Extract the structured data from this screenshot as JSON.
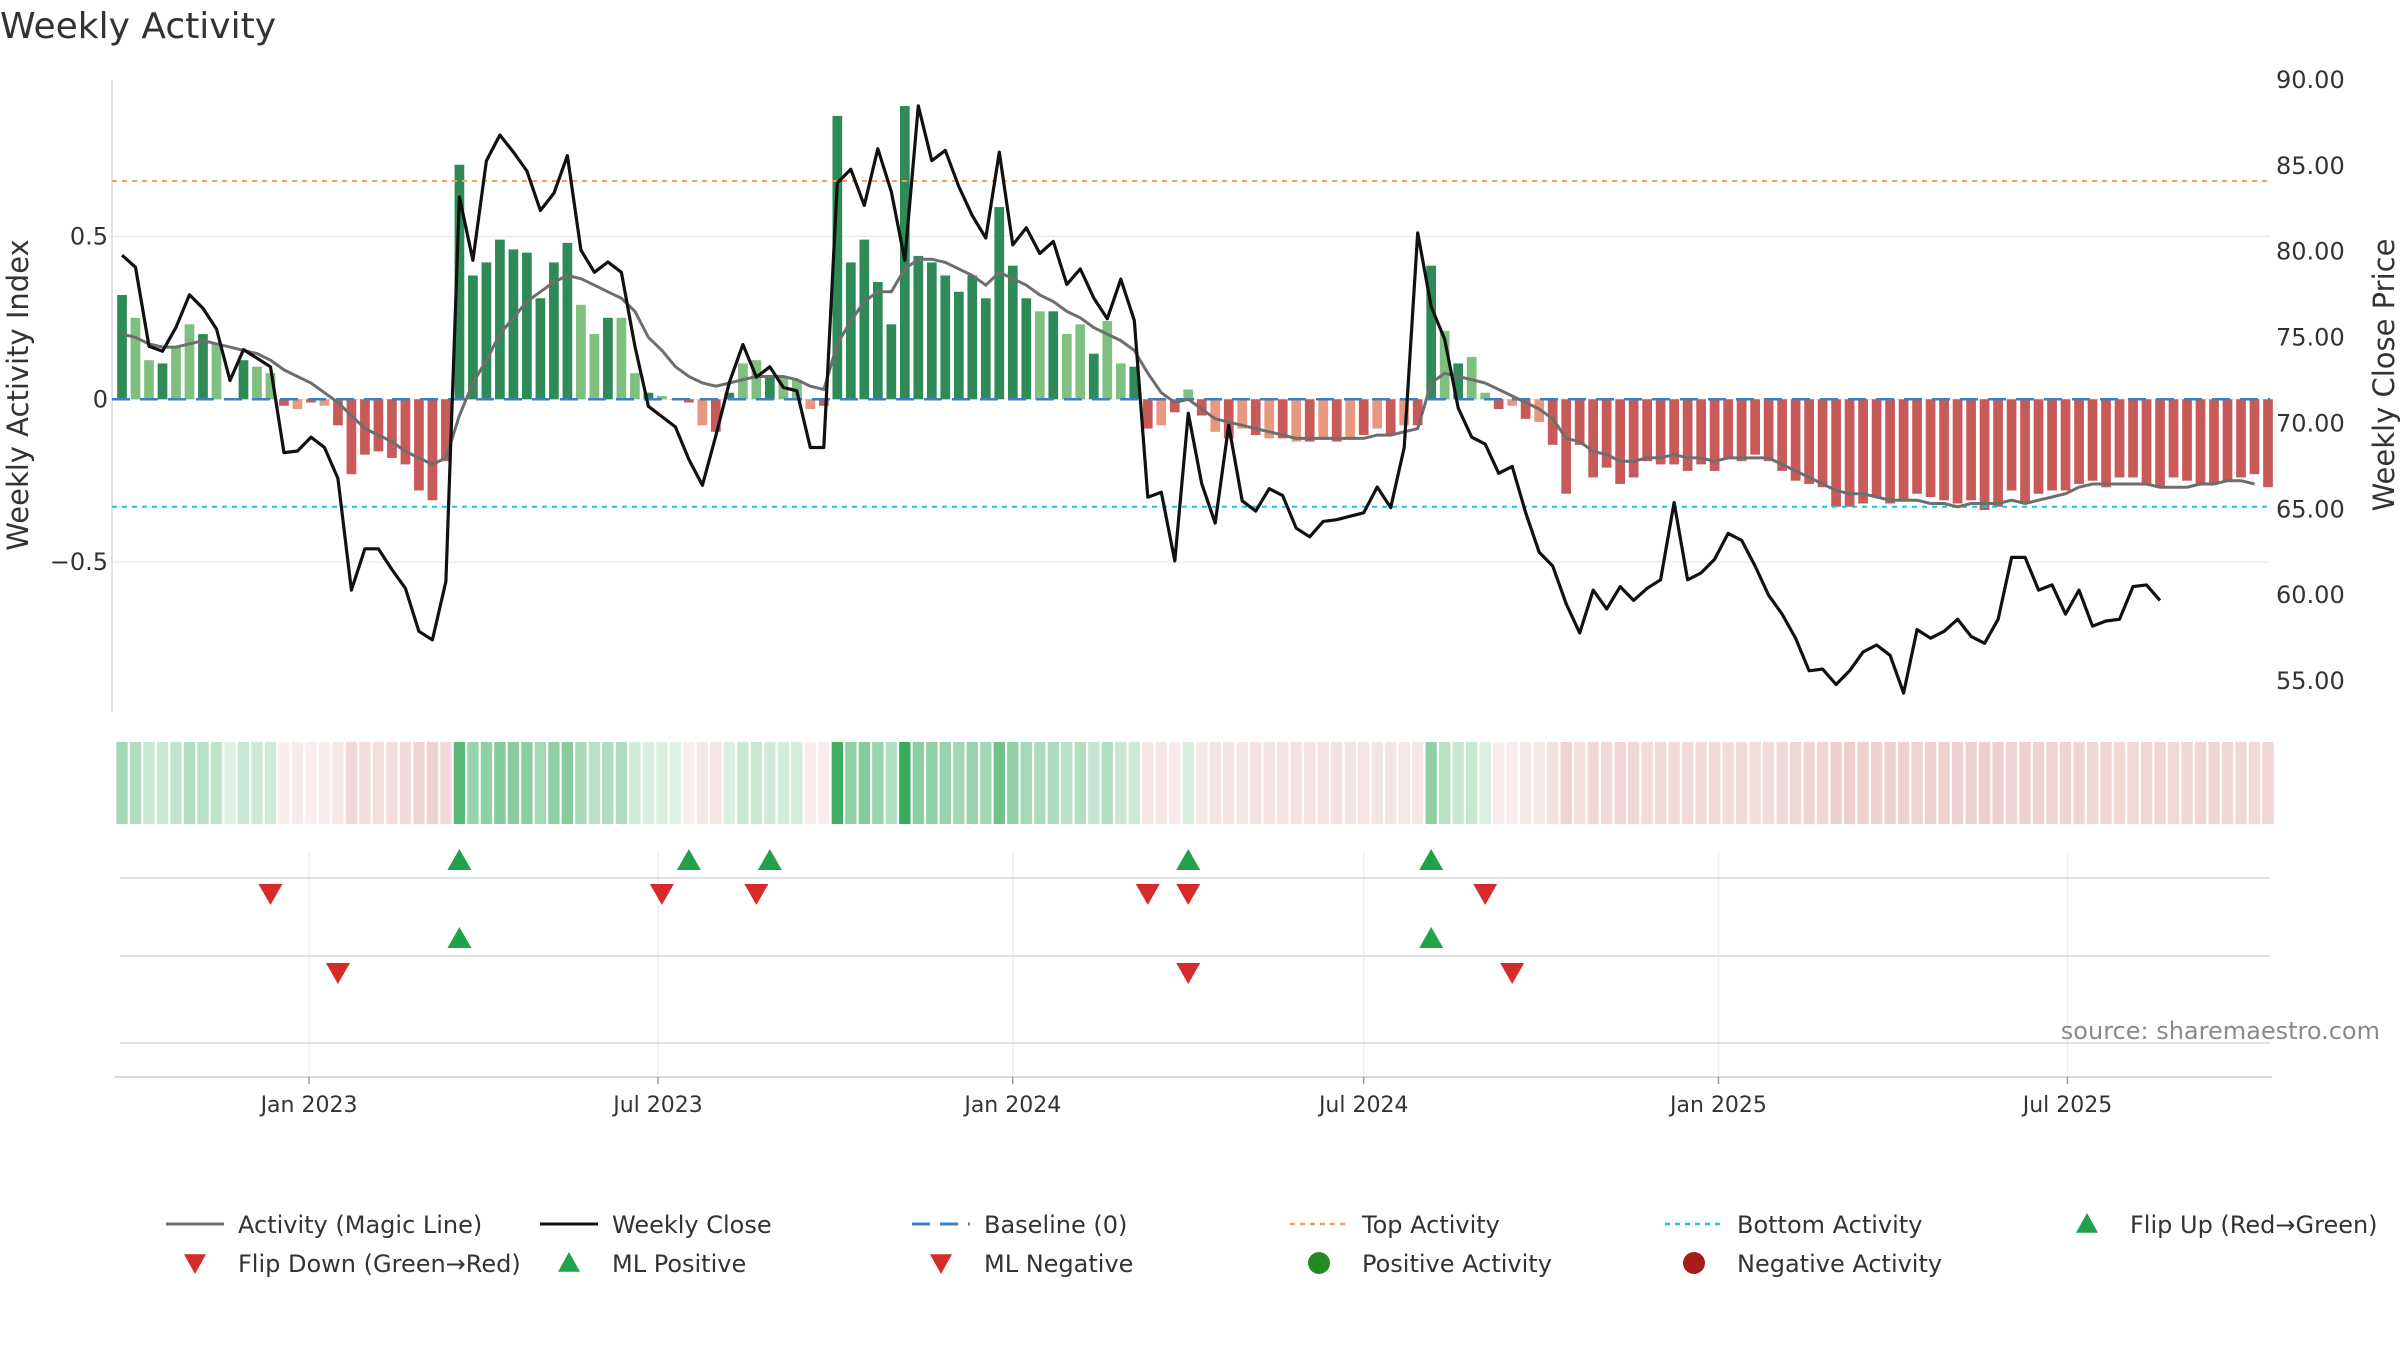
{
  "chart_data": {
    "type": "bar+line",
    "title": "Weekly Activity",
    "ylabel_left": "Weekly Activity Index",
    "ylabel_right": "Weekly Close Price",
    "left_ylim": [
      -0.96,
      0.98
    ],
    "left_ticks": [
      {
        "v": 0.5,
        "label": "0.5"
      },
      {
        "v": 0,
        "label": "0"
      },
      {
        "v": -0.5,
        "label": "−0.5"
      }
    ],
    "right_ylim": [
      53.2,
      90.0
    ],
    "right_ticks": [
      {
        "v": 90,
        "label": "90.00"
      },
      {
        "v": 85,
        "label": "85.00"
      },
      {
        "v": 80,
        "label": "80.00"
      },
      {
        "v": 75,
        "label": "75.00"
      },
      {
        "v": 70,
        "label": "70.00"
      },
      {
        "v": 65,
        "label": "65.00"
      },
      {
        "v": 60,
        "label": "60.00"
      },
      {
        "v": 55,
        "label": "55.00"
      }
    ],
    "top_activity": 0.67,
    "bottom_activity": -0.33,
    "x_start": "2022-09-26",
    "x_step_weeks": 1,
    "x_ticks": [
      {
        "date": "2023-01-01",
        "label": "Jan 2023"
      },
      {
        "date": "2023-07-01",
        "label": "Jul 2023"
      },
      {
        "date": "2024-01-01",
        "label": "Jan 2024"
      },
      {
        "date": "2024-07-01",
        "label": "Jul 2024"
      },
      {
        "date": "2025-01-01",
        "label": "Jan 2025"
      },
      {
        "date": "2025-07-01",
        "label": "Jul 2025"
      }
    ],
    "activity": [
      0.32,
      0.25,
      0.12,
      0.11,
      0.16,
      0.23,
      0.2,
      0.17,
      0.0,
      0.12,
      0.1,
      0.08,
      -0.02,
      -0.03,
      -0.01,
      -0.02,
      -0.08,
      -0.23,
      -0.17,
      -0.16,
      -0.18,
      -0.2,
      -0.28,
      -0.31,
      -0.19,
      0.72,
      0.38,
      0.42,
      0.49,
      0.46,
      0.45,
      0.31,
      0.42,
      0.48,
      0.29,
      0.2,
      0.25,
      0.25,
      0.08,
      0.02,
      0.01,
      0.0,
      -0.01,
      -0.08,
      -0.1,
      0.02,
      0.11,
      0.12,
      0.07,
      0.07,
      0.06,
      -0.03,
      -0.02,
      0.87,
      0.42,
      0.49,
      0.36,
      0.23,
      0.9,
      0.44,
      0.42,
      0.38,
      0.33,
      0.38,
      0.31,
      0.59,
      0.41,
      0.31,
      0.27,
      0.27,
      0.2,
      0.23,
      0.14,
      0.24,
      0.11,
      0.1,
      -0.09,
      -0.08,
      -0.04,
      0.03,
      -0.05,
      -0.1,
      -0.12,
      -0.09,
      -0.11,
      -0.12,
      -0.12,
      -0.13,
      -0.13,
      -0.12,
      -0.13,
      -0.12,
      -0.11,
      -0.09,
      -0.11,
      -0.08,
      -0.08,
      0.41,
      0.21,
      0.11,
      0.13,
      0.02,
      -0.03,
      -0.02,
      -0.06,
      -0.07,
      -0.14,
      -0.29,
      -0.14,
      -0.24,
      -0.21,
      -0.26,
      -0.24,
      -0.19,
      -0.2,
      -0.2,
      -0.22,
      -0.2,
      -0.22,
      -0.18,
      -0.19,
      -0.17,
      -0.19,
      -0.22,
      -0.25,
      -0.26,
      -0.27,
      -0.33,
      -0.33,
      -0.32,
      -0.3,
      -0.32,
      -0.31,
      -0.29,
      -0.3,
      -0.31,
      -0.32,
      -0.31,
      -0.34,
      -0.33,
      -0.28,
      -0.32,
      -0.29,
      -0.28,
      -0.28,
      -0.26,
      -0.25,
      -0.27,
      -0.24,
      -0.24,
      -0.26,
      -0.27,
      -0.24,
      -0.25,
      -0.26,
      -0.26,
      -0.25,
      -0.24,
      -0.23,
      -0.27
    ],
    "weekly_close": [
      79.8,
      79.1,
      74.5,
      74.2,
      75.6,
      77.5,
      76.7,
      75.5,
      72.5,
      74.3,
      73.8,
      73.3,
      68.3,
      68.4,
      69.2,
      68.6,
      66.8,
      60.3,
      62.7,
      62.7,
      61.5,
      60.4,
      57.9,
      57.4,
      60.8,
      83.2,
      79.5,
      85.3,
      86.8,
      85.8,
      84.7,
      82.4,
      83.4,
      85.6,
      80.1,
      78.8,
      79.4,
      78.8,
      74.5,
      71.0,
      70.4,
      69.8,
      67.9,
      66.4,
      69.3,
      72.4,
      74.6,
      72.7,
      73.3,
      72.1,
      71.9,
      68.6,
      68.6,
      84.0,
      84.8,
      82.7,
      86.0,
      83.5,
      79.5,
      88.5,
      85.3,
      85.9,
      83.8,
      82.1,
      80.8,
      85.8,
      80.4,
      81.4,
      79.9,
      80.6,
      78.1,
      79.0,
      77.3,
      76.1,
      78.4,
      76.0,
      65.7,
      66.0,
      62.0,
      70.6,
      66.5,
      64.2,
      69.9,
      65.5,
      64.9,
      66.2,
      65.8,
      63.9,
      63.4,
      64.3,
      64.4,
      64.6,
      64.8,
      66.3,
      65.1,
      68.6,
      81.1,
      76.8,
      74.9,
      70.9,
      69.2,
      68.8,
      67.1,
      67.5,
      64.8,
      62.5,
      61.7,
      59.5,
      57.8,
      60.3,
      59.2,
      60.5,
      59.7,
      60.4,
      60.9,
      65.4,
      60.9,
      61.3,
      62.1,
      63.6,
      63.2,
      61.7,
      60.0,
      58.9,
      57.5,
      55.6,
      55.7,
      54.8,
      55.6,
      56.7,
      57.1,
      56.5,
      54.3,
      58.0,
      57.5,
      57.9,
      58.6,
      57.6,
      57.2,
      58.6,
      62.2,
      62.2,
      60.3,
      60.6,
      58.9,
      60.3,
      58.2,
      58.5,
      58.6,
      60.5,
      60.6,
      59.7
    ],
    "magic_line": [
      0.2,
      0.19,
      0.17,
      0.16,
      0.16,
      0.17,
      0.18,
      0.17,
      0.16,
      0.15,
      0.14,
      0.12,
      0.09,
      0.07,
      0.05,
      0.02,
      -0.01,
      -0.05,
      -0.09,
      -0.11,
      -0.13,
      -0.16,
      -0.18,
      -0.2,
      -0.18,
      -0.05,
      0.05,
      0.12,
      0.2,
      0.25,
      0.3,
      0.33,
      0.36,
      0.38,
      0.37,
      0.35,
      0.33,
      0.31,
      0.27,
      0.19,
      0.15,
      0.1,
      0.07,
      0.05,
      0.04,
      0.05,
      0.06,
      0.07,
      0.07,
      0.07,
      0.06,
      0.04,
      0.03,
      0.17,
      0.24,
      0.3,
      0.33,
      0.33,
      0.4,
      0.43,
      0.43,
      0.42,
      0.4,
      0.38,
      0.35,
      0.39,
      0.37,
      0.35,
      0.32,
      0.3,
      0.27,
      0.25,
      0.22,
      0.2,
      0.18,
      0.15,
      0.08,
      0.02,
      -0.01,
      0.0,
      -0.03,
      -0.06,
      -0.07,
      -0.08,
      -0.09,
      -0.1,
      -0.11,
      -0.12,
      -0.12,
      -0.12,
      -0.12,
      -0.12,
      -0.12,
      -0.11,
      -0.11,
      -0.1,
      -0.09,
      0.05,
      0.08,
      0.07,
      0.06,
      0.05,
      0.03,
      0.01,
      -0.01,
      -0.03,
      -0.06,
      -0.12,
      -0.13,
      -0.16,
      -0.17,
      -0.19,
      -0.19,
      -0.18,
      -0.18,
      -0.17,
      -0.18,
      -0.18,
      -0.19,
      -0.18,
      -0.18,
      -0.18,
      -0.18,
      -0.2,
      -0.22,
      -0.24,
      -0.26,
      -0.28,
      -0.29,
      -0.29,
      -0.3,
      -0.31,
      -0.31,
      -0.31,
      -0.32,
      -0.32,
      -0.33,
      -0.32,
      -0.32,
      -0.32,
      -0.31,
      -0.32,
      -0.31,
      -0.3,
      -0.29,
      -0.27,
      -0.26,
      -0.26,
      -0.26,
      -0.26,
      -0.26,
      -0.27,
      -0.27,
      -0.27,
      -0.26,
      -0.26,
      -0.25,
      -0.25,
      -0.26
    ],
    "flip_up": [
      25,
      42,
      48,
      79,
      97
    ],
    "flip_down": [
      11,
      40,
      47,
      76,
      79,
      101
    ],
    "ml_positive": [
      25,
      97
    ],
    "ml_negative": [
      16,
      79,
      103
    ],
    "positive_activity": [],
    "negative_activity": []
  },
  "legend": [
    {
      "label": "Activity (Magic Line)",
      "symbol": "line",
      "color": "#6e6e6e"
    },
    {
      "label": "Weekly Close",
      "symbol": "line",
      "color": "#111111"
    },
    {
      "label": "Baseline (0)",
      "symbol": "dash",
      "color": "#3f7fbf"
    },
    {
      "label": "Top Activity",
      "symbol": "dot",
      "color": "#f0a060"
    },
    {
      "label": "Bottom Activity",
      "symbol": "dot",
      "color": "#22c4d4"
    },
    {
      "label": "Flip Up (Red→Green)",
      "symbol": "tri-up",
      "color": "#21a14a"
    },
    {
      "label": "Flip Down (Green→Red)",
      "symbol": "tri-down",
      "color": "#d62b2b"
    },
    {
      "label": "ML Positive",
      "symbol": "tri-up",
      "color": "#21a14a"
    },
    {
      "label": "ML Negative",
      "symbol": "tri-down",
      "color": "#d62b2b"
    },
    {
      "label": "Positive Activity",
      "symbol": "circle",
      "color": "#238b23"
    },
    {
      "label": "Negative Activity",
      "symbol": "circle",
      "color": "#a81b1b"
    }
  ],
  "source": "source: sharemaestro.com",
  "colors": {
    "pos_strong": "#2e8b57",
    "pos_weak": "#7fbf7f",
    "neg_strong": "#c85a5a",
    "neg_weak": "#e8987e",
    "close": "#111111",
    "magic": "#6e6e6e",
    "baseline": "#3f7fbf",
    "top": "#f0a060",
    "bottom": "#22c4d4",
    "up": "#21a14a",
    "down": "#d62b2b"
  }
}
